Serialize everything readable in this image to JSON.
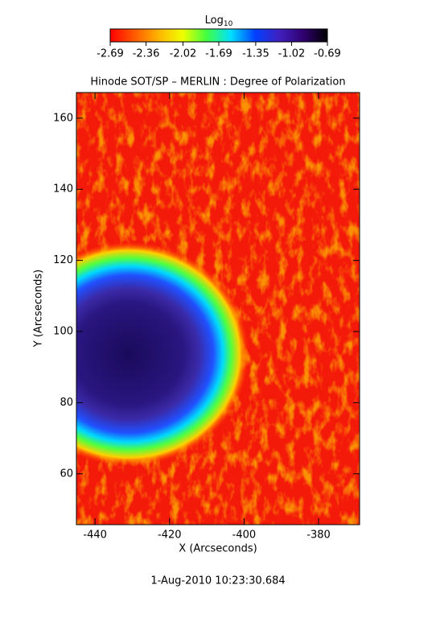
{
  "chart_data": {
    "type": "heatmap",
    "title": "Hinode SOT/SP – MERLIN : Degree of Polarization",
    "colorbar_label": "Log",
    "colorbar_label_subscript": "10",
    "colorbar_lim": [
      -2.69,
      -0.69
    ],
    "colorbar_ticks": [
      -2.69,
      -2.36,
      -2.02,
      -1.69,
      -1.35,
      -1.02,
      -0.69
    ],
    "colormap": [
      "#ff0000",
      "#ff5a00",
      "#ffb400",
      "#f0ff00",
      "#40ff40",
      "#00e0ff",
      "#0040ff",
      "#4020c0",
      "#300070",
      "#000000"
    ],
    "x_label": "X (Arcseconds)",
    "y_label": "Y (Arcseconds)",
    "xlim": [
      -445,
      -369
    ],
    "ylim": [
      45.7,
      167.2
    ],
    "xticks": [
      -440,
      -420,
      -400,
      -380
    ],
    "yticks": [
      60,
      80,
      100,
      120,
      140,
      160
    ],
    "footer": "1-Aug-2010 10:23:30.684"
  }
}
